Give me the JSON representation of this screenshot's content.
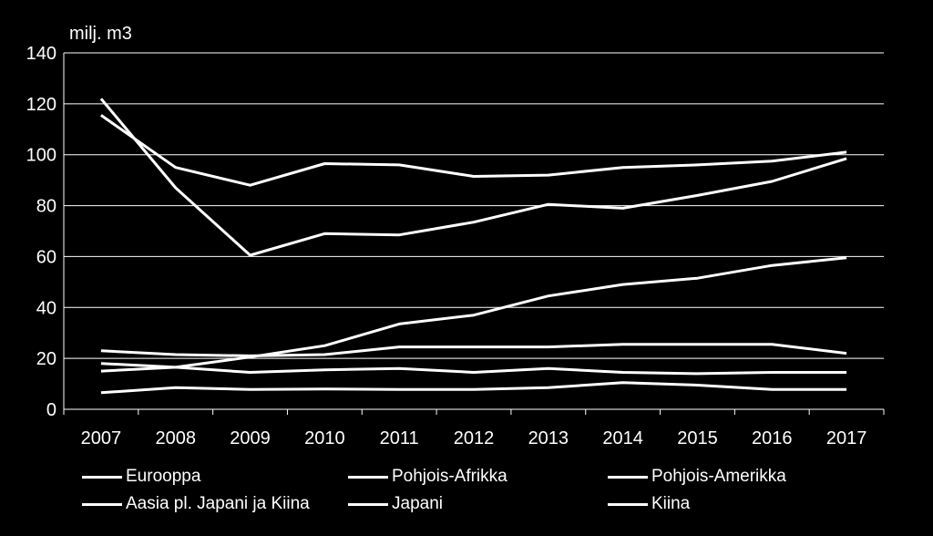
{
  "chart_data": {
    "type": "line",
    "ylabel": "milj. m3",
    "ylim": [
      0,
      140
    ],
    "yticks": [
      0,
      20,
      40,
      60,
      80,
      100,
      120,
      140
    ],
    "grid": true,
    "legend_position": "bottom",
    "colors": {
      "background": "#000000",
      "lines": "#ffffff",
      "grid": "#ffffff"
    },
    "x": [
      "2007",
      "2008",
      "2009",
      "2010",
      "2011",
      "2012",
      "2013",
      "2014",
      "2015",
      "2016",
      "2017"
    ],
    "series": [
      {
        "name": "Eurooppa",
        "values": [
          115.5,
          95,
          88,
          96.5,
          96,
          91.5,
          92,
          95,
          96,
          97.5,
          101
        ]
      },
      {
        "name": "Pohjois-Afrikka",
        "values": [
          122,
          87,
          60.5,
          69,
          68.5,
          73.5,
          80.5,
          79,
          84,
          89.5,
          98.5
        ]
      },
      {
        "name": "Pohjois-Amerikka",
        "values": [
          15,
          16.5,
          20.5,
          25,
          33.5,
          37,
          44.5,
          49,
          51.5,
          56.5,
          59.5
        ]
      },
      {
        "name": "Aasia pl. Japani ja Kiina",
        "values": [
          23,
          21.5,
          21,
          21.5,
          24.5,
          24.5,
          24.5,
          25.5,
          25.5,
          25.5,
          22
        ]
      },
      {
        "name": "Japani",
        "values": [
          18,
          16.5,
          14.5,
          15.5,
          16,
          14.5,
          16,
          14.5,
          14,
          14.5,
          14.5
        ]
      },
      {
        "name": "Kiina",
        "values": [
          6.5,
          8.5,
          7.8,
          8,
          7.8,
          7.8,
          8.5,
          10.5,
          9.5,
          7.8,
          7.8
        ]
      }
    ]
  }
}
